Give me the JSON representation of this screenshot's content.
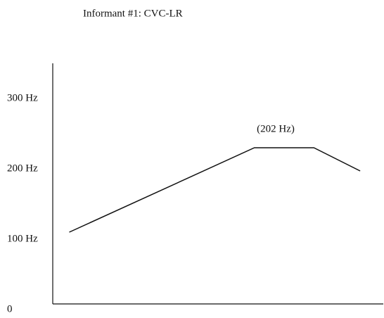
{
  "chart_data": {
    "type": "line",
    "title": "Informant #1: CVC-LR",
    "x": [
      0.05,
      0.61,
      0.79,
      0.93
    ],
    "series": [
      {
        "color": "#111111",
        "values": [
          102,
          222,
          222,
          189
        ]
      }
    ],
    "annotation": "(202 Hz)",
    "xlim": [
      0,
      1
    ],
    "ylim": [
      0,
      342
    ],
    "yticks": [
      0,
      {
        "value": 100,
        "label": "100 Hz"
      },
      {
        "value": 200,
        "label": "200 Hz"
      },
      {
        "value": 300,
        "label": "300 Hz"
      }
    ],
    "grid": false
  }
}
